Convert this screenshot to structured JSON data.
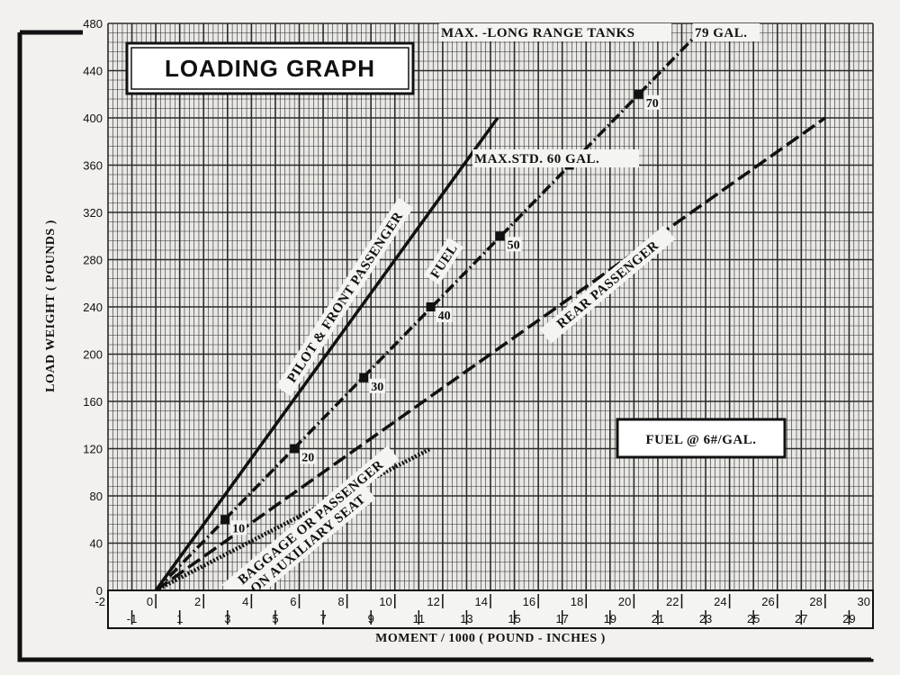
{
  "chart_data": {
    "type": "line",
    "title": "LOADING GRAPH",
    "xlabel": "MOMENT / 1000 ( POUND - INCHES )",
    "ylabel": "LOAD WEIGHT ( POUNDS )",
    "xlim": [
      -2,
      30
    ],
    "ylim": [
      0,
      480
    ],
    "grid": true,
    "x_ticks_even": [
      "-2",
      "0",
      "2",
      "4",
      "6",
      "8",
      "10",
      "12",
      "14",
      "16",
      "18",
      "20",
      "22",
      "24",
      "26",
      "28",
      "30"
    ],
    "x_ticks_odd": [
      "-1",
      "1",
      "3",
      "5",
      "7",
      "9",
      "11",
      "13",
      "15",
      "17",
      "19",
      "21",
      "23",
      "25",
      "27",
      "29"
    ],
    "y_ticks": [
      "0",
      "40",
      "80",
      "120",
      "160",
      "200",
      "240",
      "280",
      "320",
      "360",
      "400",
      "440",
      "480"
    ],
    "series": [
      {
        "name": "PILOT & FRONT PASSENGER",
        "style": "solid",
        "x": [
          0,
          14.3
        ],
        "y": [
          0,
          400
        ]
      },
      {
        "name": "FUEL",
        "style": "dash-dot",
        "x": [
          0,
          22.8
        ],
        "y": [
          0,
          474
        ]
      },
      {
        "name": "REAR PASSENGER",
        "style": "dashed",
        "x": [
          0,
          28
        ],
        "y": [
          0,
          400
        ]
      },
      {
        "name": "BAGGAGE OR PASSENGER ON AUXILIARY SEAT",
        "style": "dotted",
        "x": [
          0,
          11.5
        ],
        "y": [
          0,
          120
        ]
      }
    ],
    "fuel_points": [
      {
        "label": "10",
        "x": 2.9,
        "y": 60
      },
      {
        "label": "20",
        "x": 5.8,
        "y": 120
      },
      {
        "label": "30",
        "x": 8.7,
        "y": 180
      },
      {
        "label": "40",
        "x": 11.5,
        "y": 240
      },
      {
        "label": "50",
        "x": 14.4,
        "y": 300
      },
      {
        "label": "",
        "x": 17.3,
        "y": 360
      },
      {
        "label": "70",
        "x": 20.2,
        "y": 420
      },
      {
        "label": "",
        "x": 22.8,
        "y": 474
      }
    ],
    "annotations": {
      "max_std": "MAX.STD. 60 GAL.",
      "max_long": "MAX. -LONG RANGE TANKS",
      "gal79": "79 GAL.",
      "fuel_note": "FUEL @ 6#/GAL.",
      "pilot": "PILOT & FRONT PASSENGER",
      "fuel": "FUEL",
      "rear": "REAR PASSENGER",
      "baggage1": "BAGGAGE OR PASSENGER",
      "baggage2": "ON AUXILIARY SEAT"
    }
  }
}
